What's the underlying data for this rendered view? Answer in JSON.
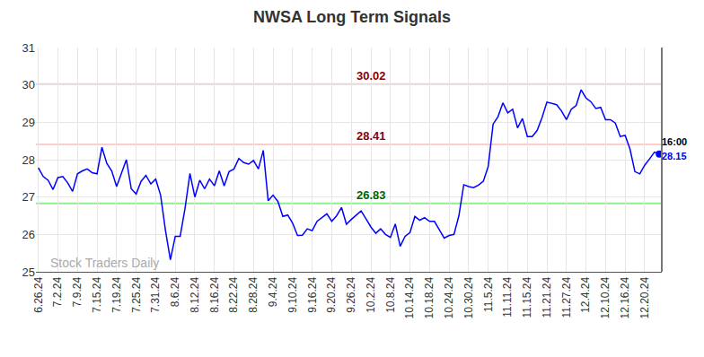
{
  "chart_data": {
    "type": "line",
    "title": "NWSA Long Term Signals",
    "categories": [
      "6.26.24",
      null,
      null,
      null,
      "7.2.24",
      null,
      null,
      null,
      "7.9.24",
      null,
      null,
      null,
      "7.15.24",
      null,
      null,
      null,
      "7.19.24",
      null,
      null,
      null,
      "7.25.24",
      null,
      null,
      null,
      "7.31.24",
      null,
      null,
      null,
      "8.6.24",
      null,
      null,
      null,
      "8.12.24",
      null,
      null,
      null,
      "8.16.24",
      null,
      null,
      null,
      "8.22.24",
      null,
      null,
      null,
      "8.28.24",
      null,
      null,
      null,
      "9.4.24",
      null,
      null,
      null,
      "9.10.24",
      null,
      null,
      null,
      "9.16.24",
      null,
      null,
      null,
      "9.20.24",
      null,
      null,
      null,
      "9.26.24",
      null,
      null,
      null,
      "10.2.24",
      null,
      null,
      null,
      "10.8.24",
      null,
      null,
      null,
      "10.14.24",
      null,
      null,
      null,
      "10.18.24",
      null,
      null,
      null,
      "10.24.24",
      null,
      null,
      null,
      "10.30.24",
      null,
      null,
      null,
      "11.5.24",
      null,
      null,
      null,
      "11.11.24",
      null,
      null,
      null,
      "11.15.24",
      null,
      null,
      null,
      "11.21.24",
      null,
      null,
      null,
      "11.27.24",
      null,
      null,
      null,
      "12.4.24",
      null,
      null,
      null,
      "12.10.24",
      null,
      null,
      null,
      "12.16.24",
      null,
      null,
      null,
      "12.20.24",
      null,
      null,
      null
    ],
    "values": [
      27.78,
      27.55,
      27.45,
      27.2,
      27.52,
      27.55,
      27.38,
      27.15,
      27.62,
      27.7,
      27.75,
      27.65,
      27.62,
      28.33,
      27.9,
      27.7,
      27.28,
      27.62,
      28.0,
      27.22,
      27.08,
      27.42,
      27.58,
      27.35,
      27.48,
      27.05,
      26.1,
      25.32,
      25.95,
      25.95,
      26.7,
      27.63,
      27.0,
      27.45,
      27.22,
      27.48,
      27.3,
      27.7,
      27.3,
      27.68,
      27.75,
      28.03,
      27.92,
      27.88,
      27.98,
      27.75,
      28.25,
      26.9,
      27.05,
      26.88,
      26.48,
      26.52,
      26.3,
      25.97,
      25.98,
      26.15,
      26.1,
      26.35,
      26.45,
      26.55,
      26.35,
      26.5,
      26.72,
      26.27,
      26.4,
      26.52,
      26.63,
      26.42,
      26.2,
      26.03,
      26.15,
      26.0,
      25.92,
      26.28,
      25.68,
      25.95,
      26.05,
      26.48,
      26.38,
      26.45,
      26.35,
      26.35,
      26.12,
      25.9,
      25.97,
      26.0,
      26.5,
      27.33,
      27.28,
      27.25,
      27.32,
      27.42,
      27.82,
      28.95,
      29.15,
      29.52,
      29.25,
      29.35,
      28.85,
      29.1,
      28.62,
      28.62,
      28.78,
      29.12,
      29.54,
      29.5,
      29.47,
      29.3,
      29.07,
      29.35,
      29.45,
      29.87,
      29.65,
      29.55,
      29.37,
      29.4,
      29.07,
      29.07,
      28.98,
      28.62,
      28.65,
      28.28,
      27.68,
      27.62,
      27.85,
      28.02,
      28.2,
      28.15
    ],
    "color": "#0000ff",
    "ylim": [
      25,
      31
    ],
    "yticks": [
      25,
      26,
      27,
      28,
      29,
      30,
      31
    ],
    "grid": true,
    "hlines": [
      {
        "value": 30.02,
        "color": "#ffcccc",
        "text_color": "#8b0000"
      },
      {
        "value": 28.41,
        "color": "#ffcccc",
        "text_color": "#8b0000"
      },
      {
        "value": 26.83,
        "color": "#90ee90",
        "text_color": "#006400"
      }
    ],
    "hline_label_at": "10.2.24",
    "end_label": {
      "time": "16:00",
      "value": 28.15
    },
    "watermark": "Stock Traders Daily"
  }
}
